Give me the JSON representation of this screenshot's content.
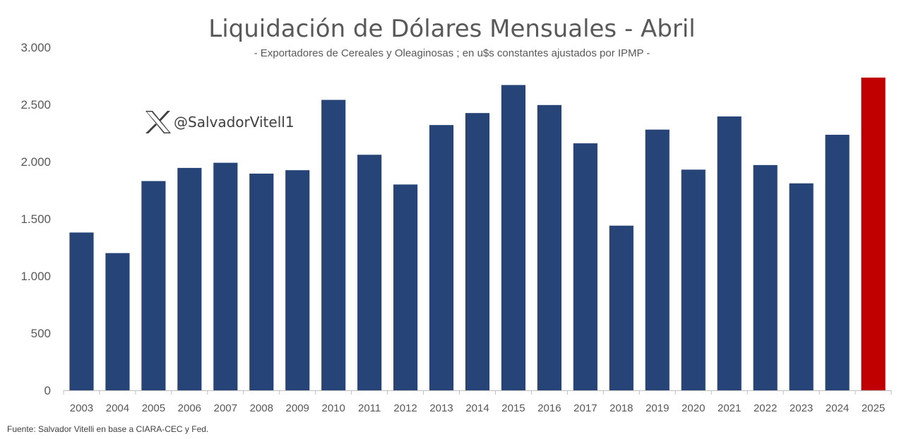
{
  "chart_data": {
    "type": "bar",
    "title": "Liquidación de Dólares Mensuales - Abril",
    "subtitle": "- Exportadores de Cereales y Oleaginosas ; en u$s constantes ajustados por IPMP -",
    "xlabel": "",
    "ylabel": "",
    "ylim": [
      0,
      3000
    ],
    "yticks": [
      0,
      500,
      1000,
      1500,
      2000,
      2500,
      3000
    ],
    "ytick_labels": [
      "0",
      "500",
      "1.000",
      "1.500",
      "2.000",
      "2.500",
      "3.000"
    ],
    "grid": false,
    "categories": [
      "2003",
      "2004",
      "2005",
      "2006",
      "2007",
      "2008",
      "2009",
      "2010",
      "2011",
      "2012",
      "2013",
      "2014",
      "2015",
      "2016",
      "2017",
      "2018",
      "2019",
      "2020",
      "2021",
      "2022",
      "2023",
      "2024",
      "2025"
    ],
    "values": [
      1380,
      1200,
      1830,
      1945,
      1990,
      1895,
      1925,
      2540,
      2060,
      1800,
      2320,
      2425,
      2670,
      2495,
      2160,
      1440,
      2280,
      1930,
      2395,
      1970,
      1810,
      2235,
      2735
    ],
    "colors": {
      "default_bar": "#264478",
      "highlight_bar": "#C00000",
      "axis": "#BFBFBF"
    },
    "highlight_category": "2025"
  },
  "watermark": {
    "icon": "x-logo-icon",
    "handle": "@SalvadorVitell1"
  },
  "source_note": "Fuente: Salvador Vitelli en base a CIARA-CEC y Fed."
}
